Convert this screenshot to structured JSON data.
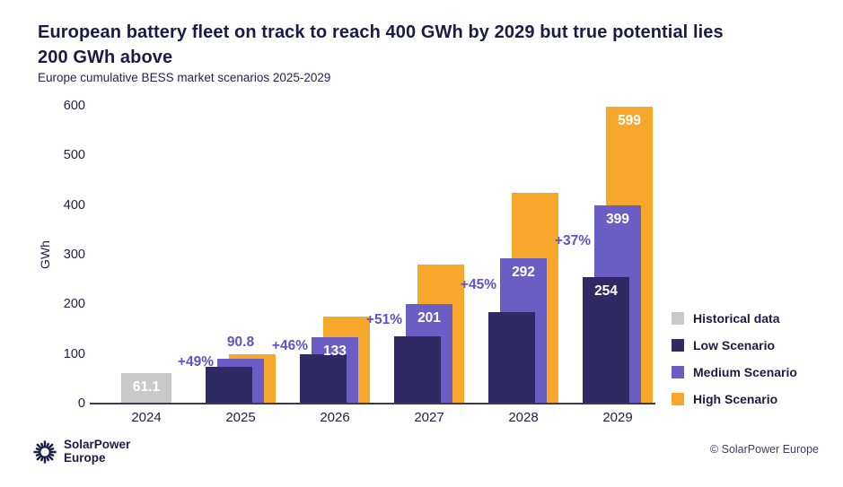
{
  "header": {
    "title": "European battery fleet on track to reach 400 GWh by 2029 but true potential lies 200 GWh above",
    "title_line1": "European battery fleet on track to reach 400 GWh by 2029 but true potential lies",
    "title_line2": "200 GWh above",
    "subtitle": "Europe cumulative BESS market scenarios 2025-2029"
  },
  "footer": {
    "logo_icon": "sunburst-icon",
    "logo_line1": "SolarPower",
    "logo_line2": "Europe",
    "copyright": "© SolarPower Europe"
  },
  "colors": {
    "background": "#ffffff",
    "ink": "#1b1b47",
    "axis": "#3a3a50",
    "label_purple": "#5b54c8",
    "historical": "#c9c9c9",
    "low": "#2f2a64",
    "medium": "#6a5ec4",
    "high": "#f7a82c"
  },
  "chart_data": {
    "type": "bar",
    "title": "European battery fleet on track to reach 400 GWh by 2029 but true potential lies 200 GWh above",
    "subtitle": "Europe cumulative BESS market scenarios 2025-2029",
    "xlabel": "",
    "ylabel": "GWh",
    "ylim": [
      0,
      600
    ],
    "yticks": [
      0,
      100,
      200,
      300,
      400,
      500,
      600
    ],
    "grid": false,
    "legend_position": "right",
    "bar_style": "overlapped-offset",
    "categories": [
      "2024",
      "2025",
      "2026",
      "2027",
      "2028",
      "2029"
    ],
    "series": [
      {
        "id": "historical",
        "name": "Historical data",
        "color": "#c9c9c9",
        "values": [
          61.1,
          null,
          null,
          null,
          null,
          null
        ]
      },
      {
        "id": "low",
        "name": "Low Scenario",
        "color": "#2f2a64",
        "values": [
          null,
          75,
          100,
          135,
          185,
          254
        ]
      },
      {
        "id": "medium",
        "name": "Medium Scenario",
        "color": "#6a5ec4",
        "values": [
          null,
          90.8,
          133,
          201,
          292,
          399
        ]
      },
      {
        "id": "high",
        "name": "High Scenario",
        "color": "#f7a82c",
        "values": [
          null,
          100,
          175,
          280,
          425,
          599
        ]
      }
    ],
    "value_labels": [
      {
        "category": "2024",
        "series": "historical",
        "text": "61.1",
        "placement": "inside"
      },
      {
        "category": "2025",
        "series": "medium",
        "text": "90.8",
        "placement": "above"
      },
      {
        "category": "2026",
        "series": "medium",
        "text": "133",
        "placement": "inside"
      },
      {
        "category": "2027",
        "series": "medium",
        "text": "201",
        "placement": "inside"
      },
      {
        "category": "2028",
        "series": "medium",
        "text": "292",
        "placement": "inside"
      },
      {
        "category": "2029",
        "series": "medium",
        "text": "399",
        "placement": "inside"
      },
      {
        "category": "2029",
        "series": "high",
        "text": "599",
        "placement": "inside"
      },
      {
        "category": "2029",
        "series": "low",
        "text": "254",
        "placement": "inside"
      }
    ],
    "growth_labels": [
      {
        "category": "2025",
        "text": "+49%"
      },
      {
        "category": "2026",
        "text": "+46%"
      },
      {
        "category": "2027",
        "text": "+51%"
      },
      {
        "category": "2028",
        "text": "+45%"
      },
      {
        "category": "2029",
        "text": "+37%"
      }
    ]
  }
}
